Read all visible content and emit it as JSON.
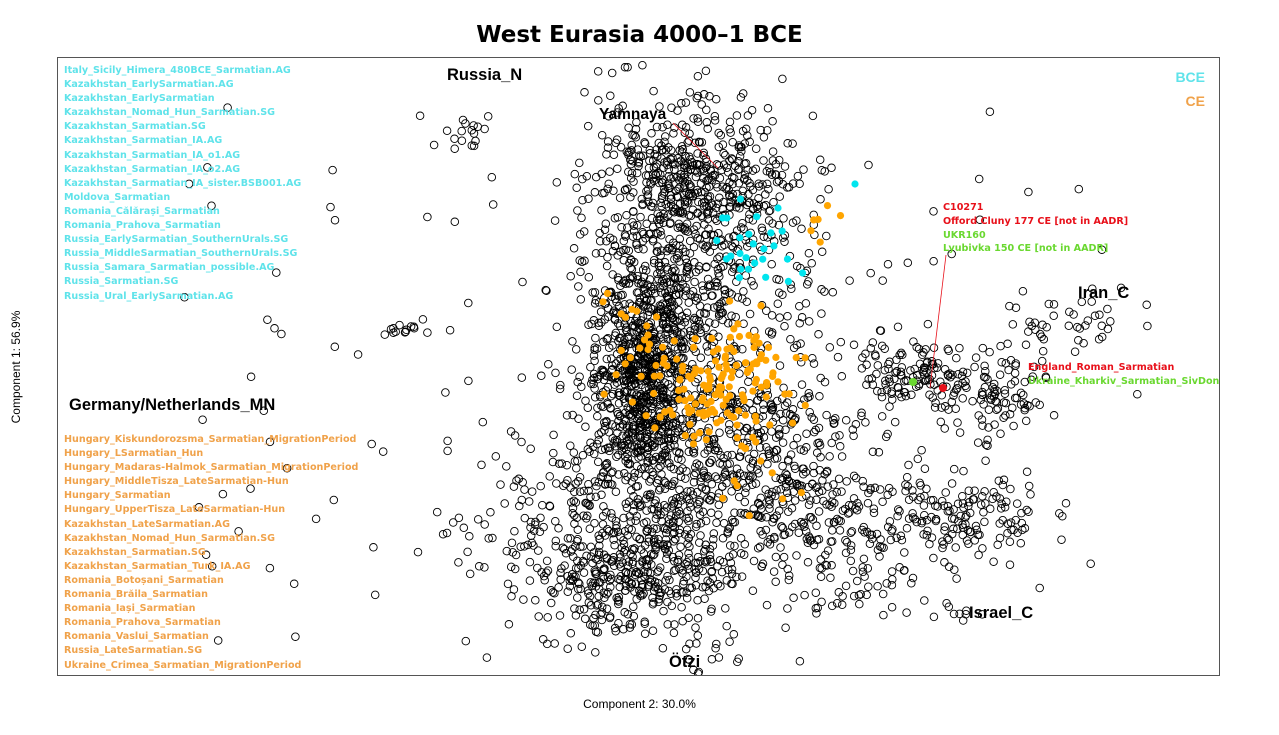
{
  "title": "West Eurasia 4000–1 BCE",
  "xlabel": "Component 2: 30.0%",
  "ylabel": "Component 1: 56.9%",
  "colors": {
    "bce": "#00e5ee",
    "ce": "#ffa500",
    "red": "#e8101a",
    "green": "#6ad830",
    "ref": "#000000"
  },
  "key": {
    "bce": "BCE",
    "ce": "CE"
  },
  "regions": {
    "russia_n": "Russia_N",
    "yamnaya": "Yamnaya",
    "germany": "Germany/Netherlands_MN",
    "iran": "Iran_C",
    "israel": "Israel_C",
    "otzi": "Ötzi"
  },
  "bce_labels": [
    "Italy_Sicily_Himera_480BCE_Sarmatian.AG",
    "Kazakhstan_EarlySarmatian.AG",
    "Kazakhstan_EarlySarmatian",
    "Kazakhstan_Nomad_Hun_Sarmatian.SG",
    "Kazakhstan_Sarmatian.SG",
    "Kazakhstan_Sarmatian_IA.AG",
    "Kazakhstan_Sarmatian_IA_o1.AG",
    "Kazakhstan_Sarmatian_IA_o2.AG",
    "Kazakhstan_Sarmatian_IA_sister.BSB001.AG",
    "Moldova_Sarmatian",
    "Romania_Călărași_Sarmatian",
    "Romania_Prahova_Sarmatian",
    "Russia_EarlySarmatian_SouthernUrals.SG",
    "Russia_MiddleSarmatian_SouthernUrals.SG",
    "Russia_Samara_Sarmatian_possible.AG",
    "Russia_Sarmatian.SG",
    "Russia_Ural_EarlySarmatian.AG"
  ],
  "ce_labels": [
    "Hungary_Kiskundorozsma_Sarmatian_MigrationPeriod",
    "Hungary_LSarmatian_Hun",
    "Hungary_Madaras-Halmok_Sarmatian_MigrationPeriod",
    "Hungary_MiddleTisza_LateSarmatian-Hun",
    "Hungary_Sarmatian",
    "Hungary_UpperTisza_LateSarmatian-Hun",
    "Kazakhstan_LateSarmatian.AG",
    "Kazakhstan_Nomad_Hun_Sarmatian.SG",
    "Kazakhstan_Sarmatian.SG",
    "Kazakhstan_Sarmatian_Turk_IA.AG",
    "Romania_Botoșani_Sarmatian",
    "Romania_Brăila_Sarmatian",
    "Romania_Iași_Sarmatian",
    "Romania_Prahova_Sarmatian",
    "Romania_Vaslui_Sarmatian",
    "Russia_LateSarmatian.SG",
    "Ukraine_Crimea_Sarmatian_MigrationPeriod"
  ],
  "annotations": {
    "c10271": "C10271",
    "offord": "Offord Cluny 177 CE [not in AADR]",
    "ukr160": "UKR160",
    "lyubivka": "Lyubivka 150 CE [not in AADR]",
    "england": "England_Roman_Sarmatian",
    "ukraine_kharkiv": "Ukraine_Kharkiv_Sarmatian_SivDon_IA"
  },
  "chart_data": {
    "type": "scatter",
    "title": "West Eurasia 4000–1 BCE",
    "xlabel": "Component 2: 30.0%",
    "ylabel": "Component 1: 56.9%",
    "grid": false,
    "legend": "top-right",
    "series": [
      {
        "name": "BCE",
        "color": "#00e5ee",
        "approx_count": 30
      },
      {
        "name": "CE",
        "color": "#ffa500",
        "approx_count": 190
      }
    ],
    "highlighted": [
      {
        "name": "England_Roman_Sarmatian",
        "color": "#e8101a"
      },
      {
        "name": "Ukraine_Kharkiv_Sarmatian_SivDon_IA",
        "color": "#6ad830"
      }
    ]
  }
}
